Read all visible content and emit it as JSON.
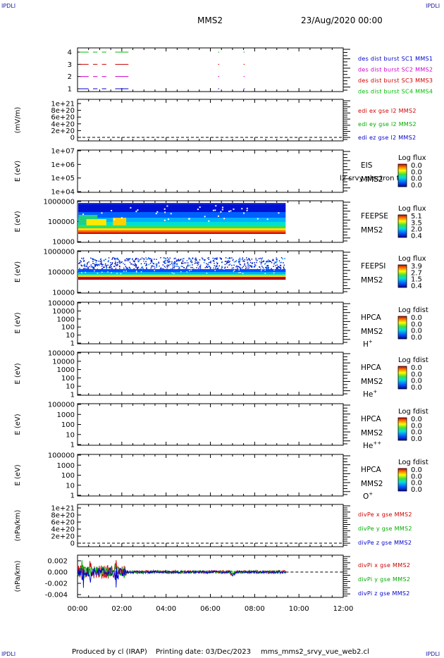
{
  "header": {
    "corner_left": "IPDLI",
    "corner_right": "IPDLI",
    "spacecraft": "MMS2",
    "date": "23/Aug/2020 00:00"
  },
  "footer": {
    "produced": "Produced by cl (IRAP)",
    "printing": "Printing date: 03/Dec/2023",
    "file": "mms_mms2_srvy_vue_web2.cl"
  },
  "colors": {
    "mms1": "#0000cc",
    "mms2": "#cc00cc",
    "mms3": "#cc0000",
    "mms4": "#00bb00",
    "x": "#cc0000",
    "y": "#00aa00",
    "z": "#0000cc"
  },
  "time_axis": {
    "range_hours": [
      0,
      12
    ],
    "tick_labels": [
      "00:00",
      "02:00",
      "04:00",
      "06:00",
      "08:00",
      "10:00",
      "12:00"
    ],
    "data_end_hours": 9.4
  },
  "chart_data": [
    {
      "type": "line",
      "id": "burst",
      "yticks": [
        "4",
        "3",
        "2",
        "1"
      ],
      "legend": [
        "des dist burst SC1 MMS1",
        "des dist burst SC2 MMS2",
        "des dist burst SC3 MMS3",
        "des dist burst SC4 MMS4"
      ],
      "series": [
        {
          "level": 1,
          "segments": [
            [
              0.1,
              0.5
            ],
            [
              0.7,
              0.9
            ],
            [
              1.1,
              1.3
            ],
            [
              1.7,
              2.3
            ],
            [
              6.35,
              6.4
            ],
            [
              7.5,
              7.55
            ]
          ]
        },
        {
          "level": 2,
          "segments": [
            [
              0.1,
              0.5
            ],
            [
              0.7,
              0.9
            ],
            [
              1.1,
              1.3
            ],
            [
              1.7,
              2.3
            ],
            [
              6.35,
              6.4
            ],
            [
              7.5,
              7.55
            ]
          ]
        },
        {
          "level": 3,
          "segments": [
            [
              0.1,
              0.5
            ],
            [
              0.7,
              0.9
            ],
            [
              1.1,
              1.3
            ],
            [
              1.7,
              2.3
            ],
            [
              6.35,
              6.4
            ],
            [
              7.5,
              7.55
            ]
          ]
        },
        {
          "level": 4,
          "segments": [
            [
              0.1,
              0.5
            ],
            [
              0.7,
              0.9
            ],
            [
              1.1,
              1.3
            ],
            [
              1.7,
              2.3
            ],
            [
              6.35,
              6.4
            ],
            [
              7.5,
              7.55
            ]
          ]
        }
      ]
    },
    {
      "type": "line",
      "id": "edi",
      "ylabel": "(mV/m)",
      "yticks": [
        "1e+21",
        "8e+20",
        "6e+20",
        "4e+20",
        "2e+20",
        "0"
      ],
      "legend": [
        "edi ex gse l2 MMS2",
        "edi ey gse l2 MMS2",
        "edi ez gse l2 MMS2"
      ],
      "reference_line": 0
    },
    {
      "type": "heatmap",
      "id": "eis",
      "ylabel": "E (eV)",
      "yticks": [
        "1e+07",
        "1e+06",
        "1e+05",
        "1e+04"
      ],
      "labels": [
        "EIS",
        "MMS2"
      ],
      "overlay_text": "l2 srvy electron to",
      "colorbar_title": "Log flux",
      "colorbar_ticks": [
        "0.0",
        "0.0",
        "0.0",
        "0.0"
      ]
    },
    {
      "type": "heatmap",
      "id": "feepse",
      "ylabel": "E (eV)",
      "yticks": [
        "1000000",
        "100000",
        "10000"
      ],
      "labels": [
        "FEEPSE",
        "MMS2"
      ],
      "colorbar_title": "Log flux",
      "colorbar_ticks": [
        "5.1",
        "3.5",
        "2.0",
        "0.4"
      ]
    },
    {
      "type": "heatmap",
      "id": "feepsi",
      "ylabel": "E (eV)",
      "yticks": [
        "1000000",
        "100000",
        "10000"
      ],
      "labels": [
        "FEEPSI",
        "MMS2"
      ],
      "colorbar_title": "Log flux",
      "colorbar_ticks": [
        "3.9",
        "2.7",
        "1.5",
        "0.4"
      ]
    },
    {
      "type": "heatmap",
      "id": "hpca_h",
      "ylabel": "E (eV)",
      "yticks": [
        "100000",
        "10000",
        "1000",
        "100",
        "10",
        "1"
      ],
      "labels": [
        "HPCA",
        "MMS2"
      ],
      "species": "H",
      "species_sup": "+",
      "colorbar_title": "Log fdist",
      "colorbar_ticks": [
        "0.0",
        "0.0",
        "0.0",
        "0.0"
      ]
    },
    {
      "type": "heatmap",
      "id": "hpca_he",
      "ylabel": "E (eV)",
      "yticks": [
        "100000",
        "10000",
        "1000",
        "100",
        "10",
        "1"
      ],
      "labels": [
        "HPCA",
        "MMS2"
      ],
      "species": "He",
      "species_sup": "+",
      "colorbar_title": "Log fdist",
      "colorbar_ticks": [
        "0.0",
        "0.0",
        "0.0",
        "0.0"
      ]
    },
    {
      "type": "heatmap",
      "id": "hpca_hepp",
      "ylabel": "E (eV)",
      "yticks": [
        "100000",
        "1000",
        "100",
        "10",
        "1"
      ],
      "labels": [
        "HPCA",
        "MMS2"
      ],
      "species": "He",
      "species_sup": "++",
      "colorbar_title": "Log fdist",
      "colorbar_ticks": [
        "0.0",
        "0.0",
        "0.0",
        "0.0"
      ]
    },
    {
      "type": "heatmap",
      "id": "hpca_o",
      "ylabel": "E (eV)",
      "yticks": [
        "100000",
        "1000",
        "100",
        "10",
        "1"
      ],
      "labels": [
        "HPCA",
        "MMS2"
      ],
      "species": "O",
      "species_sup": "+",
      "colorbar_title": "Log fdist",
      "colorbar_ticks": [
        "0.0",
        "0.0",
        "0.0",
        "0.0"
      ]
    },
    {
      "type": "line",
      "id": "divpe",
      "ylabel": "(nPa/km)",
      "yticks": [
        "1e+21",
        "8e+20",
        "6e+20",
        "4e+20",
        "2e+20",
        "0"
      ],
      "legend": [
        "divPe x gse MMS2",
        "divPe y gse MMS2",
        "divPe z gse MMS2"
      ],
      "reference_line": 0
    },
    {
      "type": "line",
      "id": "divpi",
      "ylabel": "(nPa/km)",
      "yticks": [
        "0.002",
        "0.000",
        "-0.002",
        "-0.004"
      ],
      "ylim": [
        -0.0045,
        0.003
      ],
      "legend": [
        "divPi x gse MMS2",
        "divPi y gse MMS2",
        "divPi z gse MMS2"
      ],
      "reference_line": 0
    }
  ]
}
